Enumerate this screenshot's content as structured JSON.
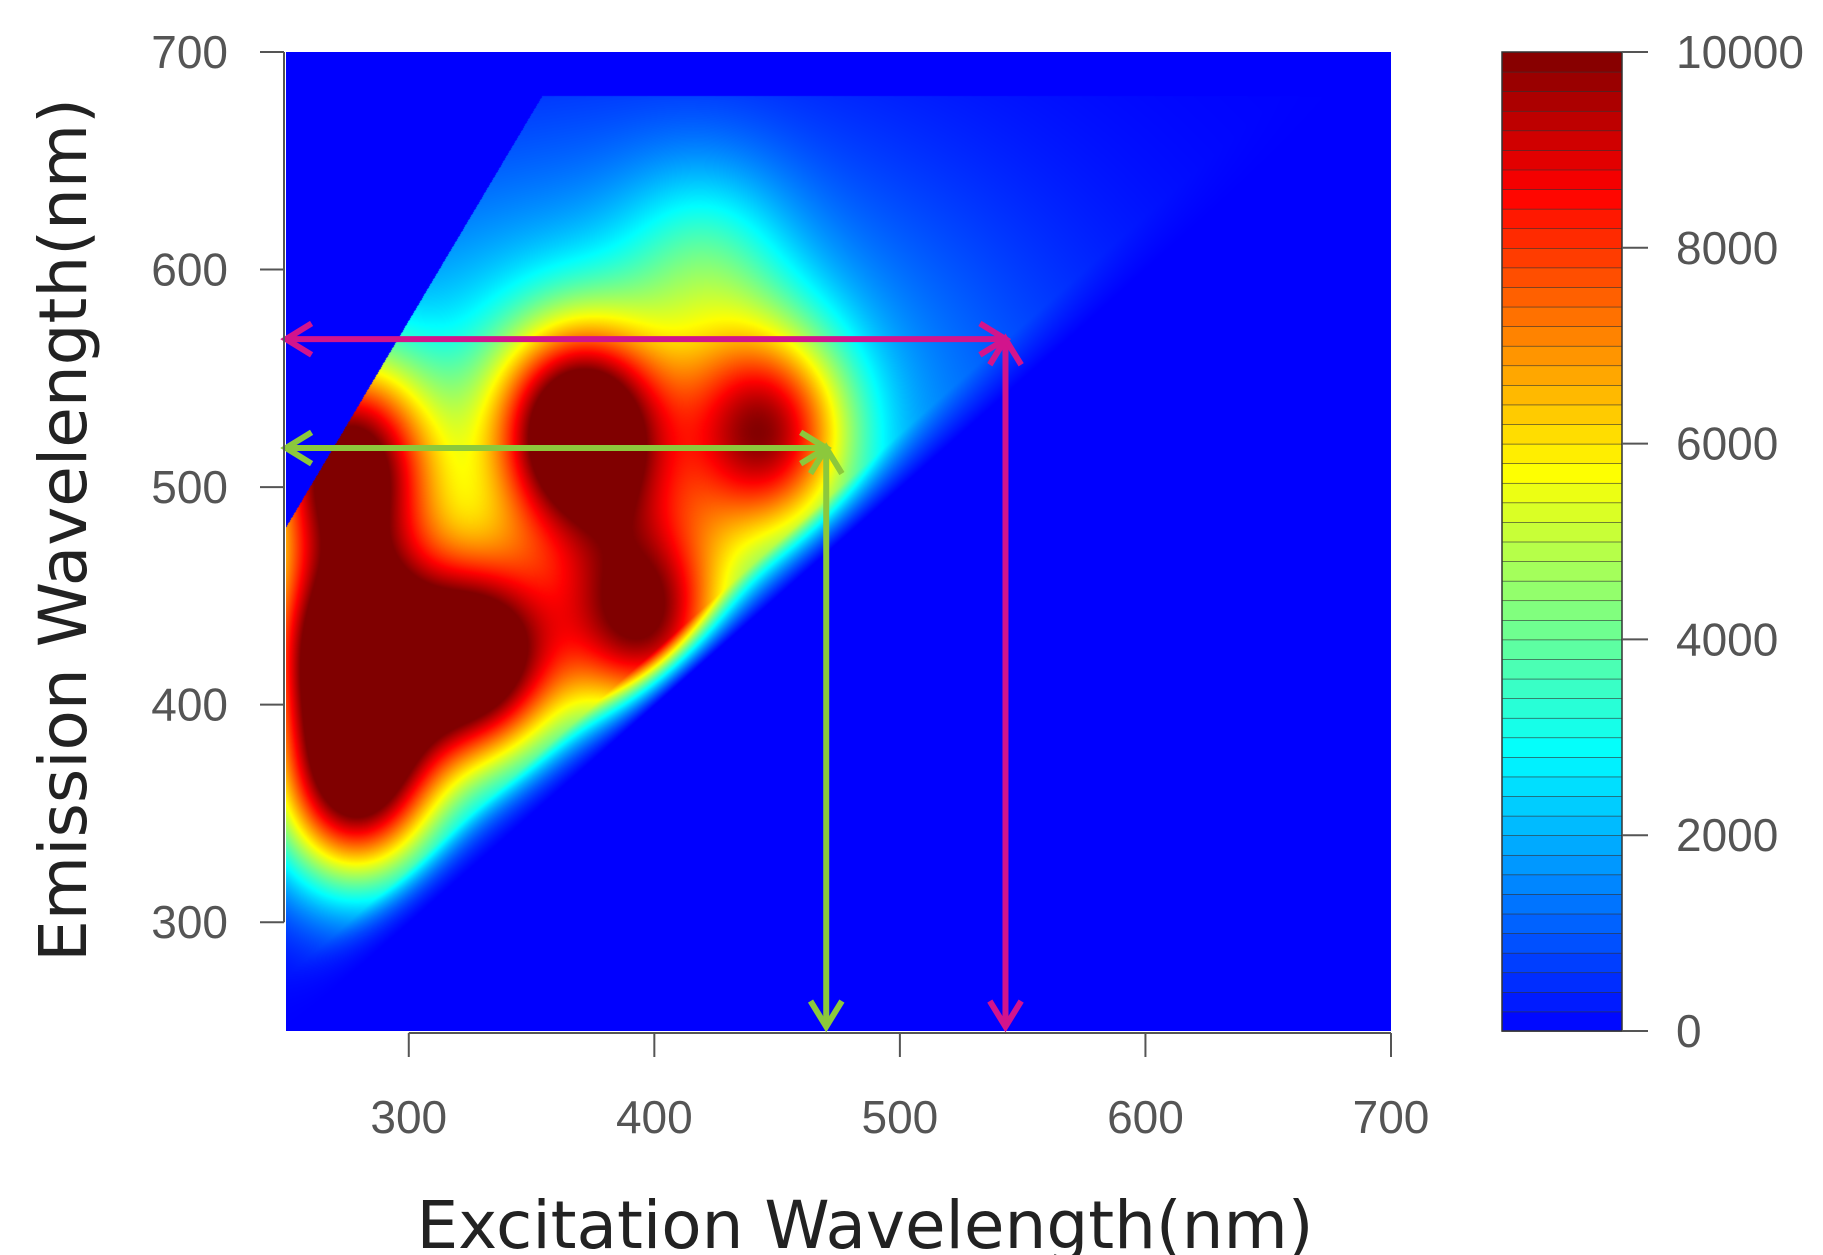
{
  "chart_data": {
    "type": "heatmap",
    "title": "",
    "xlabel": "Excitation Wavelength(nm)",
    "ylabel": "Emission Wavelength(nm)",
    "xlim": [
      250,
      700
    ],
    "ylim": [
      250,
      700
    ],
    "x_ticks": [
      "300",
      "400",
      "500",
      "600",
      "700"
    ],
    "y_ticks": [
      "300",
      "400",
      "500",
      "600",
      "700"
    ],
    "colorbar": {
      "range": [
        0,
        10000
      ],
      "ticks": [
        "0",
        "2000",
        "4000",
        "6000",
        "8000",
        "10000"
      ],
      "colormap": "jet"
    },
    "grid": false,
    "peaks": [
      {
        "ex": 275,
        "em": 428,
        "intensity": 10000
      },
      {
        "ex": 328,
        "em": 420,
        "intensity": 10000
      },
      {
        "ex": 278,
        "em": 365,
        "intensity": 10000
      },
      {
        "ex": 370,
        "em": 525,
        "intensity": 10000
      },
      {
        "ex": 275,
        "em": 510,
        "intensity": 9000
      },
      {
        "ex": 445,
        "em": 525,
        "intensity": 7000
      },
      {
        "ex": 395,
        "em": 440,
        "intensity": 8000
      },
      {
        "ex": 420,
        "em": 600,
        "intensity": 2000
      }
    ],
    "annotations": [
      {
        "kind": "double-arrow",
        "color": "#d2148c",
        "from": {
          "x": 250,
          "y": 568
        },
        "to": {
          "x": 543,
          "y": 568
        }
      },
      {
        "kind": "double-arrow",
        "color": "#d2148c",
        "from": {
          "x": 543,
          "y": 568
        },
        "to": {
          "x": 543,
          "y": 252
        }
      },
      {
        "kind": "double-arrow",
        "color": "#8cc83c",
        "from": {
          "x": 250,
          "y": 518
        },
        "to": {
          "x": 470,
          "y": 518
        }
      },
      {
        "kind": "double-arrow",
        "color": "#8cc83c",
        "from": {
          "x": 470,
          "y": 518
        },
        "to": {
          "x": 470,
          "y": 252
        }
      }
    ],
    "background_color": "#0000aa"
  }
}
